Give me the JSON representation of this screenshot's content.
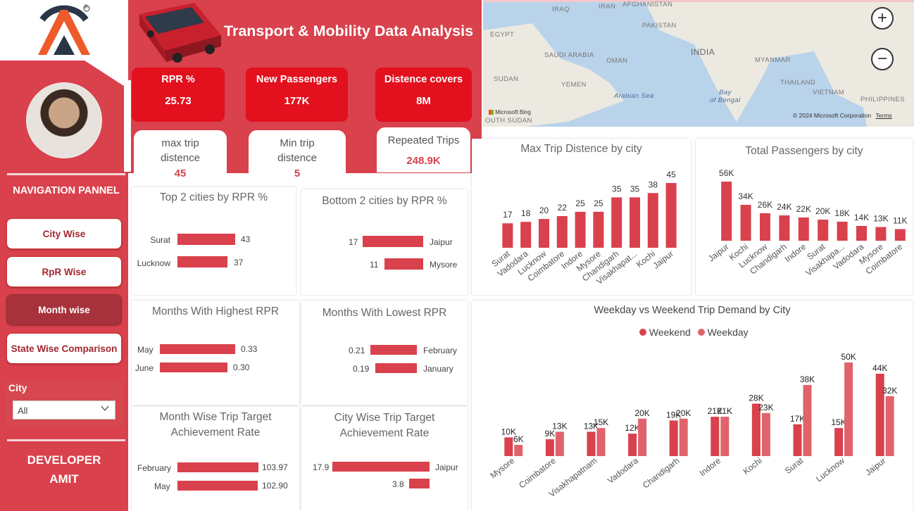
{
  "brand": {
    "registered_mark": "®"
  },
  "header": {
    "title": "Transport & Mobility Data Analysis"
  },
  "kpis": [
    {
      "label": "RPR %",
      "value": "25.73"
    },
    {
      "label": "New Passengers",
      "value": "177K"
    },
    {
      "label": "Distence covers",
      "value": "8M"
    }
  ],
  "kpis2": [
    {
      "label_line1": "max trip",
      "label_line2": "distence",
      "value": "45"
    },
    {
      "label_line1": "Min trip",
      "label_line2": "distence",
      "value": "5"
    },
    {
      "label_line1": "Repeated Trips",
      "value": "248.9K"
    }
  ],
  "sidebar": {
    "nav_title": "NAVIGATION PANNEL",
    "buttons": [
      "City Wise",
      "RpR Wise",
      "Month wise",
      "State Wise Comparison"
    ],
    "active_button": "Month wise",
    "city_label": "City",
    "city_value": "All",
    "developer_line1": "DEVELOPER",
    "developer_line2": "AMIT"
  },
  "map": {
    "labels": [
      "IRAQ",
      "IRAN",
      "AFGHANISTAN",
      "EGYPT",
      "PAKISTAN",
      "SAUDI ARABIA",
      "OMAN",
      "INDIA",
      "MYANMAR",
      "SUDAN",
      "YEMEN",
      "Arabian Sea",
      "Bay of Bengal",
      "THAILAND",
      "VIETNAM",
      "PHILIPPINES",
      "OUTH SUDAN"
    ],
    "bay_line1": "Bay",
    "bay_line2": "of Bengal",
    "attribution": "Microsoft Bing",
    "copyright": "© 2024 Microsoft Corporation",
    "terms": "Terms",
    "zoom_in": "+",
    "zoom_out": "−"
  },
  "top_cities": {
    "title": "Top 2 cities by RPR %",
    "rows": [
      {
        "label": "Surat",
        "value": 43
      },
      {
        "label": "Lucknow",
        "value": 37
      }
    ]
  },
  "bottom_cities": {
    "title": "Bottom 2 cities by RPR %",
    "rows": [
      {
        "label": "Jaipur",
        "value": 17
      },
      {
        "label": "Mysore",
        "value": 11
      }
    ]
  },
  "high_months": {
    "title": "Months With Highest RPR",
    "rows": [
      {
        "label": "May",
        "value": "0.33"
      },
      {
        "label": "June",
        "value": "0.30"
      }
    ]
  },
  "low_months": {
    "title": "Months With Lowest RPR",
    "rows": [
      {
        "label": "February",
        "value": "0.21"
      },
      {
        "label": "January",
        "value": "0.19"
      }
    ]
  },
  "month_target": {
    "title_line1": "Month Wise Trip Target",
    "title_line2": "Achievement Rate",
    "rows": [
      {
        "label": "February",
        "value": "103.97"
      },
      {
        "label": "May",
        "value": "102.90"
      }
    ]
  },
  "city_target": {
    "title_line1": "City Wise Trip Target",
    "title_line2": "Achievement Rate",
    "rows": [
      {
        "label": "Jaipur",
        "value": "17.9"
      },
      {
        "label": "",
        "value": "3.8"
      }
    ]
  },
  "chart_data": [
    {
      "type": "bar",
      "title": "Max Trip Distence by city",
      "categories": [
        "Surat",
        "Vadodara",
        "Lucknow",
        "Coimbatore",
        "Indore",
        "Mysore",
        "Chandigarh",
        "Visakhapat...",
        "Kochi",
        "Jaipur"
      ],
      "values": [
        17,
        18,
        20,
        22,
        25,
        25,
        35,
        35,
        38,
        45
      ],
      "labels": [
        "17",
        "18",
        "20",
        "22",
        "25",
        "25",
        "35",
        "35",
        "38",
        "45"
      ]
    },
    {
      "type": "bar",
      "title": "Total Passengers by city",
      "categories": [
        "Jaipur",
        "Kochi",
        "Lucknow",
        "Chandigarh",
        "Indore",
        "Surat",
        "Visakhapa...",
        "Vadodara",
        "Mysore",
        "Coimbatore"
      ],
      "values": [
        56,
        34,
        26,
        24,
        22,
        20,
        18,
        14,
        13,
        11
      ],
      "labels": [
        "56K",
        "34K",
        "26K",
        "24K",
        "22K",
        "20K",
        "18K",
        "14K",
        "13K",
        "11K"
      ]
    },
    {
      "type": "bar",
      "title": "Weekday vs Weekend Trip Demand by City",
      "categories": [
        "Mysore",
        "Coimbatore",
        "Visakhapatnam",
        "Vadodara",
        "Chandigarh",
        "Indore",
        "Kochi",
        "Surat",
        "Lucknow",
        "Jaipur"
      ],
      "series": [
        {
          "name": "Weekend",
          "values": [
            10,
            9,
            13,
            12,
            19,
            21,
            28,
            17,
            15,
            44
          ],
          "labels": [
            "10K",
            "9K",
            "13K",
            "12K",
            "19K",
            "21K",
            "28K",
            "17K",
            "15K",
            "44K"
          ]
        },
        {
          "name": "Weekday",
          "values": [
            6,
            13,
            15,
            20,
            20,
            21,
            23,
            38,
            50,
            32
          ],
          "labels": [
            "6K",
            "13K",
            "15K",
            "20K",
            "20K",
            "21K",
            "23K",
            "38K",
            "50K",
            "32K"
          ]
        }
      ],
      "colors": {
        "Weekend": "#d9414c",
        "Weekday": "#e0636b"
      }
    }
  ]
}
